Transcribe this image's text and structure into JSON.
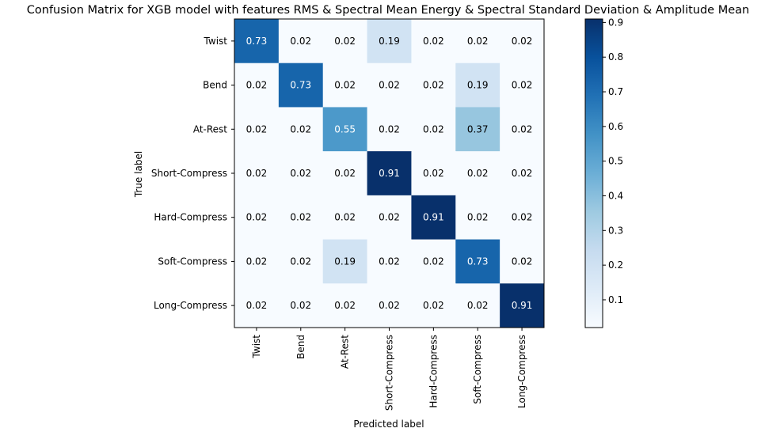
{
  "chart_data": {
    "type": "heatmap",
    "title": "Confusion Matrix for XGB model with features RMS & Spectral Mean Energy & Spectral Standard Deviation & Amplitude Mean",
    "xlabel": "Predicted label",
    "ylabel": "True label",
    "row_labels": [
      "Twist",
      "Bend",
      "At-Rest",
      "Short-Compress",
      "Hard-Compress",
      "Soft-Compress",
      "Long-Compress"
    ],
    "col_labels": [
      "Twist",
      "Bend",
      "At-Rest",
      "Short-Compress",
      "Hard-Compress",
      "Soft-Compress",
      "Long-Compress"
    ],
    "values": [
      [
        "0.73",
        "0.02",
        "0.02",
        "0.19",
        "0.02",
        "0.02",
        "0.02"
      ],
      [
        "0.02",
        "0.73",
        "0.02",
        "0.02",
        "0.02",
        "0.19",
        "0.02"
      ],
      [
        "0.02",
        "0.02",
        "0.55",
        "0.02",
        "0.02",
        "0.37",
        "0.02"
      ],
      [
        "0.02",
        "0.02",
        "0.02",
        "0.91",
        "0.02",
        "0.02",
        "0.02"
      ],
      [
        "0.02",
        "0.02",
        "0.02",
        "0.02",
        "0.91",
        "0.02",
        "0.02"
      ],
      [
        "0.02",
        "0.02",
        "0.19",
        "0.02",
        "0.02",
        "0.73",
        "0.02"
      ],
      [
        "0.02",
        "0.02",
        "0.02",
        "0.02",
        "0.02",
        "0.02",
        "0.91"
      ]
    ],
    "colormap": "Blues",
    "colorbar": {
      "vmin": 0.02,
      "vmax": 0.91,
      "ticks": [
        "0.1",
        "0.2",
        "0.3",
        "0.4",
        "0.5",
        "0.6",
        "0.7",
        "0.8",
        "0.9"
      ]
    },
    "grid": false
  }
}
